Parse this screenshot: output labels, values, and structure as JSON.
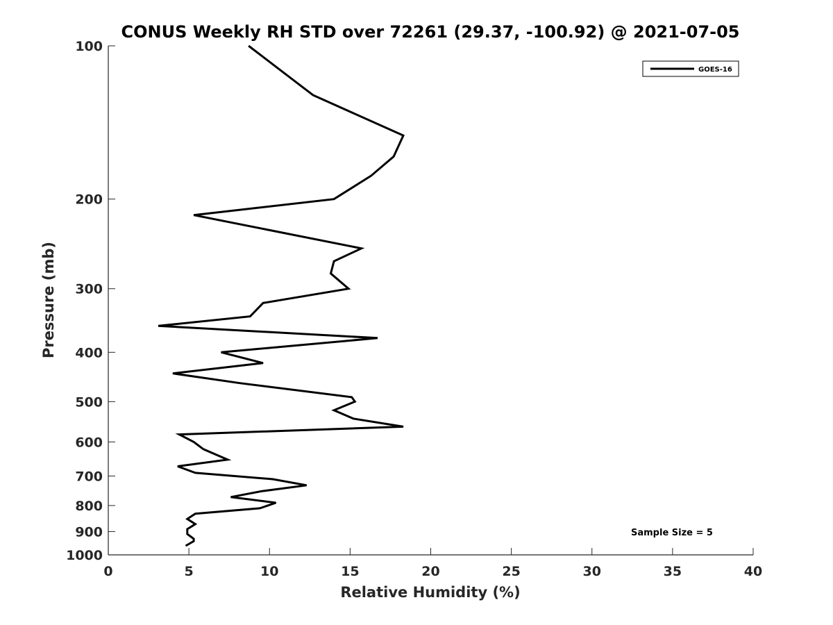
{
  "chart_data": {
    "type": "line",
    "title": "CONUS Weekly RH STD over 72261 (29.37, -100.92) @ 2021-07-05",
    "xlabel": "Relative Humidity (%)",
    "ylabel": "Pressure (mb)",
    "xlim": [
      0,
      40
    ],
    "ylim": [
      100,
      1000
    ],
    "y_scale": "log",
    "y_reversed": true,
    "x_ticks": [
      0,
      5,
      10,
      15,
      20,
      25,
      30,
      35,
      40
    ],
    "y_ticks": [
      100,
      200,
      300,
      400,
      500,
      600,
      700,
      800,
      900,
      1000
    ],
    "grid": false,
    "legend": {
      "position": "top-right",
      "entries": [
        "GOES-16"
      ]
    },
    "annotation": "Sample Size = 5",
    "series": [
      {
        "name": "GOES-16",
        "color": "#000000",
        "points": [
          [
            8.7,
            100
          ],
          [
            12.7,
            125
          ],
          [
            18.3,
            150
          ],
          [
            17.7,
            165
          ],
          [
            16.3,
            180
          ],
          [
            14.0,
            200
          ],
          [
            5.3,
            215
          ],
          [
            15.7,
            250
          ],
          [
            14.0,
            265
          ],
          [
            13.8,
            280
          ],
          [
            14.9,
            300
          ],
          [
            9.6,
            320
          ],
          [
            8.8,
            340
          ],
          [
            3.1,
            355
          ],
          [
            16.7,
            375
          ],
          [
            7.0,
            400
          ],
          [
            9.6,
            420
          ],
          [
            4.0,
            440
          ],
          [
            8.2,
            460
          ],
          [
            15.1,
            490
          ],
          [
            15.3,
            500
          ],
          [
            14.0,
            520
          ],
          [
            15.2,
            540
          ],
          [
            18.3,
            560
          ],
          [
            4.4,
            580
          ],
          [
            5.3,
            600
          ],
          [
            5.9,
            620
          ],
          [
            7.4,
            650
          ],
          [
            4.3,
            670
          ],
          [
            5.4,
            690
          ],
          [
            10.2,
            710
          ],
          [
            12.3,
            730
          ],
          [
            9.5,
            750
          ],
          [
            7.6,
            770
          ],
          [
            10.4,
            790
          ],
          [
            9.4,
            810
          ],
          [
            5.4,
            830
          ],
          [
            4.9,
            850
          ],
          [
            5.4,
            870
          ],
          [
            4.9,
            890
          ],
          [
            4.9,
            910
          ],
          [
            5.3,
            930
          ],
          [
            5.3,
            940
          ],
          [
            4.8,
            960
          ]
        ]
      }
    ]
  }
}
